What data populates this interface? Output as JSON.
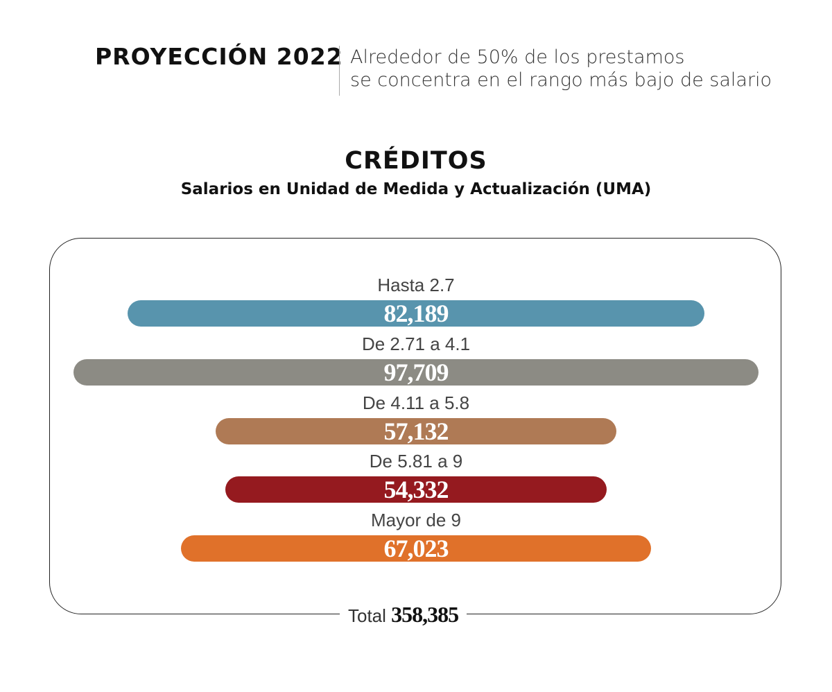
{
  "header": {
    "title": "PROYECCIÓN 2022",
    "subtitle_line1": "Alrededor de 50% de los prestamos",
    "subtitle_line2": "se concentra en el rango más bajo de salario"
  },
  "chart_data": {
    "type": "bar",
    "orientation": "horizontal-centered",
    "title": "CRÉDITOS",
    "subtitle": "Salarios en Unidad de Medida y Actualización (UMA)",
    "categories": [
      "Hasta 2.7",
      "De 2.71 a 4.1",
      "De 4.11 a 5.8",
      "De 5.81 a 9",
      "Mayor de 9"
    ],
    "values": [
      82189,
      97709,
      57132,
      54332,
      67023
    ],
    "value_labels": [
      "82,189",
      "97,709",
      "57,132",
      "54,332",
      "67,023"
    ],
    "colors": [
      "#5894ad",
      "#8c8b84",
      "#af7a55",
      "#951a1f",
      "#e0712a"
    ],
    "total_label": "Total",
    "total_value": "358,385"
  }
}
